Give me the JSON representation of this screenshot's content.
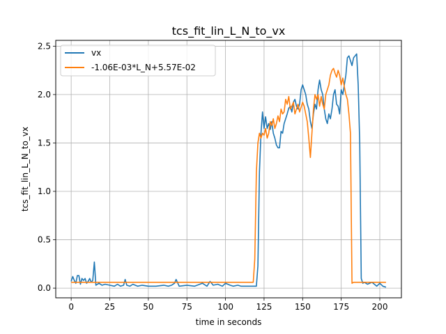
{
  "chart_data": {
    "type": "line",
    "title": "tcs_fit_lin_L_N_to_vx",
    "xlabel": "time in seconds",
    "ylabel": "tcs_fit_lin_L_N_to_vx",
    "xlim": [
      -10,
      214
    ],
    "ylim": [
      -0.1,
      2.56
    ],
    "xticks": [
      0,
      25,
      50,
      75,
      100,
      125,
      150,
      175,
      200
    ],
    "yticks": [
      0.0,
      0.5,
      1.0,
      1.5,
      2.0,
      2.5
    ],
    "xtick_labels": [
      "0",
      "25",
      "50",
      "75",
      "100",
      "125",
      "150",
      "175",
      "200"
    ],
    "ytick_labels": [
      "0.0",
      "0.5",
      "1.0",
      "1.5",
      "2.0",
      "2.5"
    ],
    "grid": true,
    "legend_position": "upper-left",
    "series": [
      {
        "name": "vx",
        "color": "#1f77b4",
        "x": [
          0,
          1,
          2,
          3,
          4,
          5,
          6,
          7,
          8,
          9,
          10,
          11,
          12,
          13,
          14,
          15,
          16,
          18,
          20,
          22,
          25,
          28,
          30,
          32,
          34,
          35,
          36,
          38,
          40,
          43,
          46,
          50,
          55,
          60,
          63,
          65,
          67,
          68,
          70,
          75,
          80,
          85,
          88,
          90,
          92,
          95,
          98,
          100,
          103,
          105,
          108,
          110,
          113,
          115,
          117,
          119,
          120,
          121,
          122,
          123,
          124,
          125,
          126,
          127,
          128,
          129,
          130,
          131,
          132,
          133,
          134,
          135,
          136,
          137,
          138,
          139,
          140,
          141,
          142,
          143,
          144,
          145,
          146,
          147,
          148,
          149,
          150,
          151,
          152,
          153,
          154,
          155,
          156,
          157,
          158,
          159,
          160,
          161,
          162,
          163,
          164,
          165,
          166,
          167,
          168,
          169,
          170,
          171,
          172,
          173,
          174,
          175,
          176,
          177,
          178,
          179,
          180,
          181,
          182,
          183,
          184,
          185,
          186,
          187,
          188,
          189,
          190,
          192,
          195,
          198,
          200,
          202,
          204
        ],
        "y": [
          0.07,
          0.12,
          0.08,
          0.05,
          0.13,
          0.13,
          0.04,
          0.1,
          0.08,
          0.1,
          0.05,
          0.07,
          0.1,
          0.06,
          0.08,
          0.27,
          0.03,
          0.05,
          0.03,
          0.04,
          0.03,
          0.02,
          0.04,
          0.02,
          0.03,
          0.09,
          0.03,
          0.02,
          0.04,
          0.02,
          0.03,
          0.02,
          0.02,
          0.03,
          0.02,
          0.03,
          0.05,
          0.09,
          0.02,
          0.03,
          0.02,
          0.05,
          0.02,
          0.07,
          0.03,
          0.04,
          0.02,
          0.05,
          0.03,
          0.02,
          0.03,
          0.02,
          0.02,
          0.02,
          0.02,
          0.02,
          0.02,
          0.23,
          1.2,
          1.6,
          1.82,
          1.65,
          1.77,
          1.65,
          1.7,
          1.64,
          1.72,
          1.6,
          1.55,
          1.48,
          1.45,
          1.45,
          1.62,
          1.6,
          1.7,
          1.75,
          1.8,
          1.86,
          1.88,
          1.82,
          1.92,
          1.95,
          1.88,
          1.85,
          1.9,
          2.05,
          2.1,
          2.05,
          2.0,
          1.9,
          1.85,
          1.72,
          1.65,
          1.8,
          1.9,
          1.85,
          2.05,
          2.15,
          2.05,
          2.0,
          1.85,
          1.75,
          1.7,
          1.8,
          1.75,
          1.85,
          2.0,
          2.05,
          1.9,
          1.88,
          1.8,
          2.05,
          2.0,
          2.1,
          2.2,
          2.38,
          2.4,
          2.35,
          2.3,
          2.38,
          2.4,
          2.42,
          2.1,
          1.5,
          0.1,
          0.05,
          0.06,
          0.04,
          0.06,
          0.02,
          0.05,
          0.02,
          0.01
        ]
      },
      {
        "name": "-1.06E-03*L_N+5.57E-02",
        "color": "#ff7f0e",
        "x": [
          0,
          118,
          119,
          120,
          121,
          122,
          123,
          124,
          125,
          126,
          127,
          128,
          129,
          130,
          131,
          132,
          133,
          134,
          135,
          136,
          137,
          138,
          139,
          140,
          141,
          142,
          143,
          144,
          145,
          146,
          147,
          148,
          149,
          150,
          151,
          152,
          153,
          154,
          155,
          156,
          157,
          158,
          159,
          160,
          161,
          162,
          163,
          164,
          165,
          166,
          167,
          168,
          169,
          170,
          171,
          172,
          173,
          174,
          175,
          176,
          177,
          178,
          179,
          180,
          181,
          182,
          183,
          184,
          185,
          186,
          187,
          188,
          190,
          195,
          200,
          204
        ],
        "y": [
          0.06,
          0.06,
          0.3,
          1.2,
          1.5,
          1.6,
          1.55,
          1.6,
          1.58,
          1.65,
          1.55,
          1.6,
          1.72,
          1.68,
          1.75,
          1.65,
          1.7,
          1.78,
          1.72,
          1.85,
          1.8,
          1.82,
          1.95,
          1.9,
          1.98,
          1.85,
          1.88,
          1.92,
          1.8,
          1.85,
          1.9,
          1.82,
          1.87,
          1.92,
          1.88,
          1.8,
          1.72,
          1.55,
          1.35,
          1.6,
          1.85,
          2.0,
          1.95,
          2.0,
          1.88,
          1.98,
          1.9,
          1.85,
          2.0,
          2.05,
          2.1,
          2.2,
          2.25,
          2.27,
          2.22,
          2.18,
          2.25,
          2.2,
          2.1,
          2.17,
          2.08,
          2.0,
          1.95,
          1.8,
          1.6,
          0.05,
          0.06,
          0.06,
          0.06,
          0.06,
          0.06,
          0.06,
          0.06,
          0.06,
          0.06,
          0.06
        ]
      }
    ]
  }
}
